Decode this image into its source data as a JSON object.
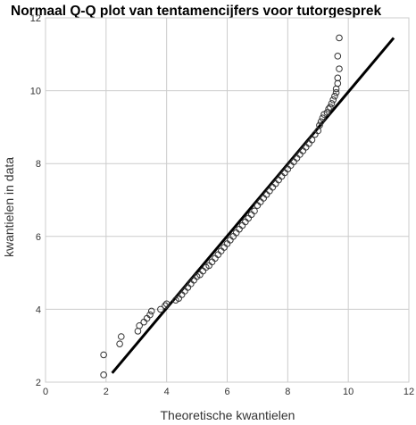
{
  "chart_data": {
    "type": "scatter",
    "title": "Normaal Q-Q plot van tentamencijfers voor tutorgesprek",
    "xlabel": "Theoretische kwantielen",
    "ylabel": "kwantielen in data",
    "xlim": [
      0,
      12
    ],
    "ylim": [
      2,
      12
    ],
    "xticks": [
      0,
      2,
      4,
      6,
      8,
      10,
      12
    ],
    "yticks": [
      2,
      4,
      6,
      8,
      10,
      12
    ],
    "grid": true,
    "colors": {
      "points": "#333333",
      "reference_line": "#000000",
      "grid": "#cccccc",
      "frame": "#cccccc"
    },
    "series": [
      {
        "marker": "open-circle",
        "points": [
          [
            1.92,
            2.2
          ],
          [
            1.92,
            2.75
          ],
          [
            2.45,
            3.05
          ],
          [
            2.5,
            3.25
          ],
          [
            3.05,
            3.4
          ],
          [
            3.1,
            3.55
          ],
          [
            3.25,
            3.65
          ],
          [
            3.35,
            3.75
          ],
          [
            3.45,
            3.85
          ],
          [
            3.5,
            3.95
          ],
          [
            3.8,
            4.0
          ],
          [
            3.95,
            4.1
          ],
          [
            4.0,
            4.15
          ],
          [
            4.3,
            4.25
          ],
          [
            4.4,
            4.3
          ],
          [
            4.5,
            4.4
          ],
          [
            4.6,
            4.5
          ],
          [
            4.7,
            4.6
          ],
          [
            4.8,
            4.7
          ],
          [
            4.9,
            4.8
          ],
          [
            5.0,
            4.9
          ],
          [
            5.1,
            4.95
          ],
          [
            5.2,
            5.05
          ],
          [
            5.3,
            5.15
          ],
          [
            5.4,
            5.2
          ],
          [
            5.5,
            5.3
          ],
          [
            5.6,
            5.4
          ],
          [
            5.7,
            5.5
          ],
          [
            5.8,
            5.6
          ],
          [
            5.9,
            5.7
          ],
          [
            6.0,
            5.8
          ],
          [
            6.1,
            5.9
          ],
          [
            6.2,
            6.0
          ],
          [
            6.3,
            6.1
          ],
          [
            6.4,
            6.2
          ],
          [
            6.5,
            6.3
          ],
          [
            6.6,
            6.4
          ],
          [
            6.7,
            6.5
          ],
          [
            6.8,
            6.6
          ],
          [
            6.9,
            6.7
          ],
          [
            7.0,
            6.85
          ],
          [
            7.1,
            6.95
          ],
          [
            7.2,
            7.05
          ],
          [
            7.3,
            7.15
          ],
          [
            7.4,
            7.25
          ],
          [
            7.5,
            7.35
          ],
          [
            7.6,
            7.45
          ],
          [
            7.7,
            7.55
          ],
          [
            7.8,
            7.65
          ],
          [
            7.9,
            7.75
          ],
          [
            8.0,
            7.85
          ],
          [
            8.1,
            7.95
          ],
          [
            8.2,
            8.05
          ],
          [
            8.3,
            8.15
          ],
          [
            8.4,
            8.25
          ],
          [
            8.5,
            8.35
          ],
          [
            8.6,
            8.45
          ],
          [
            8.7,
            8.55
          ],
          [
            8.8,
            8.65
          ],
          [
            8.9,
            8.8
          ],
          [
            9.0,
            8.9
          ],
          [
            9.05,
            9.05
          ],
          [
            9.1,
            9.15
          ],
          [
            9.15,
            9.25
          ],
          [
            9.2,
            9.35
          ],
          [
            9.3,
            9.4
          ],
          [
            9.35,
            9.5
          ],
          [
            9.4,
            9.55
          ],
          [
            9.45,
            9.65
          ],
          [
            9.5,
            9.75
          ],
          [
            9.55,
            9.85
          ],
          [
            9.6,
            9.95
          ],
          [
            9.6,
            10.05
          ],
          [
            9.65,
            10.2
          ],
          [
            9.65,
            10.35
          ],
          [
            9.7,
            10.6
          ],
          [
            9.65,
            10.95
          ],
          [
            9.7,
            11.45
          ]
        ]
      }
    ],
    "reference_line": {
      "x": [
        2.2,
        11.5
      ],
      "y": [
        2.25,
        11.45
      ]
    }
  }
}
